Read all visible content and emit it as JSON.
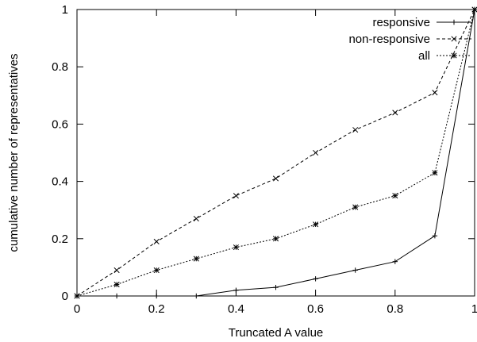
{
  "chart_data": {
    "type": "line",
    "title": "",
    "xlabel": "Truncated A value",
    "ylabel": "cumulative number of representatives",
    "xlim": [
      0,
      1
    ],
    "ylim": [
      0,
      1
    ],
    "x_ticks": [
      "0",
      "0.2",
      "0.4",
      "0.6",
      "0.8",
      "1"
    ],
    "y_ticks": [
      "0",
      "0.2",
      "0.4",
      "0.6",
      "0.8",
      "1"
    ],
    "grid": false,
    "legend_position": "top-right",
    "x": [
      0,
      0.1,
      0.2,
      0.3,
      0.4,
      0.5,
      0.6,
      0.7,
      0.8,
      0.9,
      1.0
    ],
    "series": [
      {
        "name": "responsive",
        "line_style": "solid",
        "marker": "plus",
        "color": "#000000",
        "values": [
          0,
          0,
          0,
          0,
          0.02,
          0.03,
          0.06,
          0.09,
          0.12,
          0.21,
          1.0
        ]
      },
      {
        "name": "non-responsive",
        "line_style": "dashed",
        "marker": "cross",
        "color": "#000000",
        "values": [
          0,
          0.09,
          0.19,
          0.27,
          0.35,
          0.41,
          0.5,
          0.58,
          0.64,
          0.71,
          1.0
        ]
      },
      {
        "name": "all",
        "line_style": "dotted",
        "marker": "star",
        "color": "#000000",
        "values": [
          0,
          0.04,
          0.09,
          0.13,
          0.17,
          0.2,
          0.25,
          0.31,
          0.35,
          0.43,
          1.0
        ]
      }
    ]
  }
}
